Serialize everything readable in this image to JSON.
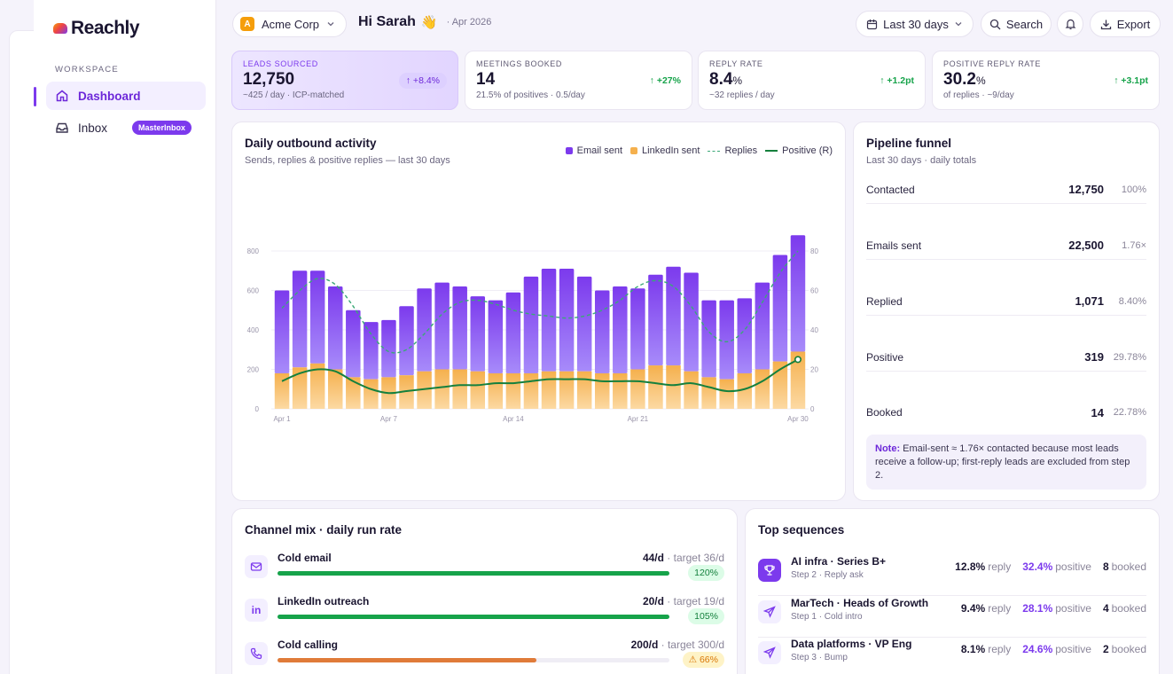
{
  "app": {
    "brand": "Reachly",
    "workspace_label": "WORKSPACE"
  },
  "sidebar": {
    "items": [
      {
        "label": "Dashboard",
        "icon": "home-icon",
        "active": true
      },
      {
        "label": "Inbox",
        "icon": "inbox-icon",
        "badge": "MasterInbox"
      }
    ]
  },
  "header": {
    "company": "Acme Corp",
    "company_initial": "A",
    "greeting": "Hi Sarah",
    "emoji": "👋",
    "date": "· Apr 2026",
    "range": "Last 30 days",
    "search": "Search",
    "export": "Export"
  },
  "kpis": [
    {
      "label": "LEADS SOURCED",
      "value": "12,750",
      "unit": "",
      "sub": "~425 / day · ICP-matched",
      "delta": "↑ +8.4%"
    },
    {
      "label": "MEETINGS BOOKED",
      "value": "14",
      "unit": "",
      "sub": "21.5% of positives · 0.5/day",
      "delta": "↑ +27%"
    },
    {
      "label": "REPLY RATE",
      "value": "8.4",
      "unit": "%",
      "sub": "~32 replies / day",
      "delta": "↑ +1.2pt"
    },
    {
      "label": "POSITIVE REPLY RATE",
      "value": "30.2",
      "unit": "%",
      "sub": "of replies · ~9/day",
      "delta": "↑ +3.1pt"
    }
  ],
  "activity": {
    "title": "Daily outbound activity",
    "subtitle": "Sends, replies & positive replies — last 30 days",
    "legend": {
      "email": "Email sent",
      "linkedin": "LinkedIn sent",
      "replies": "Replies",
      "positive": "Positive (R)"
    }
  },
  "chart_data": {
    "type": "bar",
    "stacked": true,
    "categories": [
      "Apr 1",
      "Apr 2",
      "Apr 3",
      "Apr 4",
      "Apr 5",
      "Apr 6",
      "Apr 7",
      "Apr 8",
      "Apr 9",
      "Apr 10",
      "Apr 11",
      "Apr 12",
      "Apr 13",
      "Apr 14",
      "Apr 15",
      "Apr 16",
      "Apr 17",
      "Apr 18",
      "Apr 19",
      "Apr 20",
      "Apr 21",
      "Apr 22",
      "Apr 23",
      "Apr 24",
      "Apr 25",
      "Apr 26",
      "Apr 27",
      "Apr 28",
      "Apr 29",
      "Apr 30"
    ],
    "x_ticks": [
      "Apr 1",
      "Apr 7",
      "Apr 14",
      "Apr 21",
      "Apr 30"
    ],
    "series": [
      {
        "name": "LinkedIn sent",
        "values": [
          180,
          210,
          230,
          200,
          160,
          150,
          160,
          170,
          190,
          200,
          200,
          190,
          180,
          180,
          180,
          190,
          190,
          190,
          180,
          180,
          200,
          220,
          220,
          190,
          160,
          150,
          180,
          200,
          240,
          290
        ]
      },
      {
        "name": "Email sent",
        "values": [
          420,
          490,
          470,
          420,
          340,
          290,
          290,
          350,
          420,
          440,
          420,
          380,
          370,
          410,
          490,
          520,
          520,
          480,
          420,
          440,
          410,
          460,
          500,
          500,
          390,
          400,
          380,
          440,
          540,
          590
        ]
      },
      {
        "name": "Replies",
        "axis": "right",
        "values": [
          51,
          60,
          66,
          63,
          52,
          38,
          29,
          30,
          38,
          48,
          54,
          55,
          53,
          50,
          48,
          47,
          46,
          47,
          50,
          55,
          62,
          65,
          62,
          52,
          39,
          34,
          40,
          54,
          69,
          80
        ]
      },
      {
        "name": "Positive (R)",
        "axis": "right",
        "values": [
          14,
          18,
          20,
          19,
          14,
          10,
          8,
          9,
          10,
          11,
          12,
          12,
          13,
          13,
          14,
          15,
          15,
          15,
          14,
          14,
          14,
          13,
          12,
          13,
          11,
          9,
          10,
          14,
          20,
          25
        ]
      }
    ],
    "y_left": {
      "ticks": [
        "0",
        "200",
        "400",
        "600",
        "800"
      ],
      "ylim": [
        0,
        800
      ]
    },
    "y_right": {
      "ticks": [
        "0",
        "20",
        "40",
        "60",
        "80"
      ],
      "ylim": [
        0,
        80
      ]
    }
  },
  "funnel": {
    "title": "Pipeline funnel",
    "subtitle": "Last 30 days · daily totals",
    "rows": [
      {
        "label": "Contacted",
        "value": "12,750",
        "pct": "100%"
      },
      {
        "label": "Emails sent",
        "value": "22,500",
        "pct": "1.76×"
      },
      {
        "label": "Replied",
        "value": "1,071",
        "pct": "8.40%"
      },
      {
        "label": "Positive",
        "value": "319",
        "pct": "29.78%"
      },
      {
        "label": "Booked",
        "value": "14",
        "pct": "22.78%"
      }
    ],
    "note_label": "Note:",
    "note_text": " Email-sent ≈ 1.76× contacted because most leads receive a follow-up; first-reply leads are excluded from step 2."
  },
  "channels": {
    "title": "Channel mix · daily run rate",
    "rows": [
      {
        "name": "Cold email",
        "rate": "44/d",
        "target": " · target 36/d",
        "pct": "120%",
        "fill": 1.0,
        "color": "#16a34a",
        "icon": "mail-icon"
      },
      {
        "name": "LinkedIn outreach",
        "rate": "20/d",
        "target": " · target 19/d",
        "pct": "105%",
        "fill": 1.0,
        "color": "#16a34a",
        "icon": "linkedin-icon"
      },
      {
        "name": "Cold calling",
        "rate": "200/d",
        "target": " · target 300/d",
        "pct": "⚠ 66%",
        "fill": 0.66,
        "color": "#e07b39",
        "icon": "phone-icon"
      }
    ]
  },
  "sequences": {
    "title": "Top sequences",
    "rows": [
      {
        "name": "AI infra · Series B+",
        "step": "Step 2 · Reply ask",
        "reply": "12.8%",
        "reply_l": "reply",
        "pos": "32.4%",
        "pos_l": "positive",
        "booked": "8",
        "booked_l": "booked",
        "icon": "trophy-icon"
      },
      {
        "name": "MarTech · Heads of Growth",
        "step": "Step 1 · Cold intro",
        "reply": "9.4%",
        "reply_l": "reply",
        "pos": "28.1%",
        "pos_l": "positive",
        "booked": "4",
        "booked_l": "booked",
        "icon": "send-icon"
      },
      {
        "name": "Data platforms · VP Eng",
        "step": "Step 3 · Bump",
        "reply": "8.1%",
        "reply_l": "reply",
        "pos": "24.6%",
        "pos_l": "positive",
        "booked": "2",
        "booked_l": "booked",
        "icon": "send-icon"
      }
    ]
  }
}
